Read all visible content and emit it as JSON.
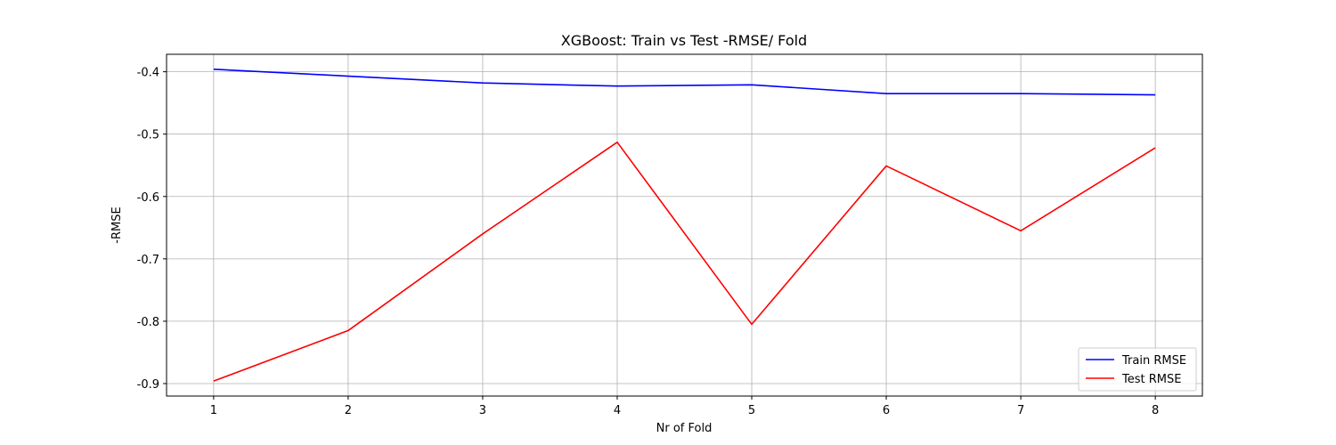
{
  "chart_data": {
    "type": "line",
    "title": "XGBoost: Train vs Test -RMSE/ Fold",
    "xlabel": "Nr of Fold",
    "ylabel": "-RMSE",
    "x": [
      1,
      2,
      3,
      4,
      5,
      6,
      7,
      8
    ],
    "xticks": [
      "1",
      "2",
      "3",
      "4",
      "5",
      "6",
      "7",
      "8"
    ],
    "yticks": [
      "-0.4",
      "-0.5",
      "-0.6",
      "-0.7",
      "-0.8",
      "-0.9"
    ],
    "xlim": [
      0.65,
      8.35
    ],
    "ylim": [
      -0.92,
      -0.372
    ],
    "grid": true,
    "legend_position": "lower-right",
    "series": [
      {
        "name": "Train RMSE",
        "color": "#0000ff",
        "values": [
          -0.396,
          -0.407,
          -0.418,
          -0.423,
          -0.421,
          -0.435,
          -0.435,
          -0.437
        ]
      },
      {
        "name": "Test RMSE",
        "color": "#ff0000",
        "values": [
          -0.896,
          -0.815,
          -0.66,
          -0.513,
          -0.805,
          -0.551,
          -0.655,
          -0.522
        ]
      }
    ]
  }
}
